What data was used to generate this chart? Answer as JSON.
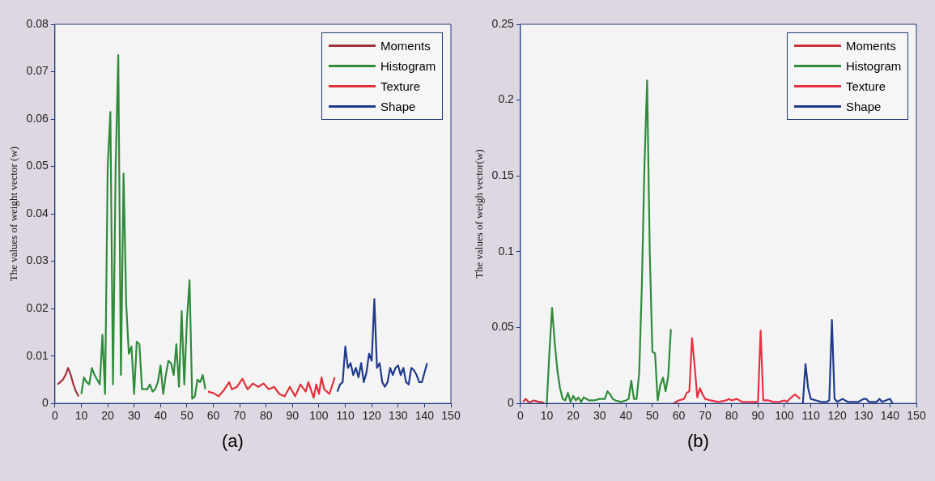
{
  "chart_data": [
    {
      "type": "line",
      "ylabel": "The values of weight vector (w)",
      "annotations": [
        "(a)"
      ],
      "xlim": [
        0,
        150
      ],
      "xticks": [
        0,
        10,
        20,
        30,
        40,
        50,
        60,
        70,
        80,
        90,
        100,
        110,
        120,
        130,
        140,
        150
      ],
      "ylim": [
        0,
        0.08
      ],
      "yticks": [
        0,
        0.01,
        0.02,
        0.03,
        0.04,
        0.05,
        0.06,
        0.07,
        0.08
      ],
      "legend": "top right",
      "marker": "none",
      "line_style": "solid",
      "series": [
        {
          "name": "Moments",
          "color": "#a0323c",
          "x": [
            1,
            2,
            3,
            4,
            5,
            6,
            7,
            8,
            9
          ],
          "values": [
            0.004,
            0.0045,
            0.005,
            0.006,
            0.0075,
            0.006,
            0.004,
            0.0025,
            0.0015
          ]
        },
        {
          "name": "Histogram",
          "color": "#2e8b3a",
          "x": [
            10,
            11,
            12,
            13,
            14,
            15,
            16,
            17,
            18,
            19,
            20,
            21,
            22,
            23,
            24,
            25,
            26,
            27,
            28,
            29,
            30,
            31,
            32,
            33,
            34,
            35,
            36,
            37,
            38,
            39,
            40,
            41,
            42,
            43,
            44,
            45,
            46,
            47,
            48,
            49,
            50,
            51,
            52,
            53,
            54,
            55,
            56,
            57
          ],
          "values": [
            0.002,
            0.0055,
            0.0045,
            0.004,
            0.0075,
            0.006,
            0.005,
            0.004,
            0.0145,
            0.002,
            0.05,
            0.0615,
            0.004,
            0.05,
            0.0735,
            0.006,
            0.0485,
            0.021,
            0.0105,
            0.012,
            0.002,
            0.013,
            0.0125,
            0.003,
            0.003,
            0.003,
            0.004,
            0.0025,
            0.003,
            0.0045,
            0.008,
            0.002,
            0.006,
            0.009,
            0.0085,
            0.006,
            0.0125,
            0.0035,
            0.0195,
            0.004,
            0.0175,
            0.026,
            0.001,
            0.0015,
            0.005,
            0.0045,
            0.006,
            0.003
          ]
        },
        {
          "name": "Texture",
          "color": "#e0303a",
          "x": [
            58,
            60,
            62,
            64,
            66,
            67,
            69,
            71,
            73,
            75,
            77,
            79,
            81,
            83,
            85,
            87,
            89,
            91,
            93,
            95,
            96,
            98,
            99,
            100,
            101,
            102,
            104,
            106
          ],
          "values": [
            0.0025,
            0.0022,
            0.0015,
            0.0028,
            0.0045,
            0.003,
            0.0035,
            0.0052,
            0.003,
            0.0042,
            0.0035,
            0.0042,
            0.003,
            0.0035,
            0.002,
            0.0015,
            0.0035,
            0.0015,
            0.004,
            0.0025,
            0.0045,
            0.0012,
            0.004,
            0.002,
            0.0055,
            0.003,
            0.002,
            0.0055
          ]
        },
        {
          "name": "Shape",
          "color": "#1f3a8c",
          "x": [
            107,
            108,
            109,
            110,
            111,
            112,
            113,
            114,
            115,
            116,
            117,
            118,
            119,
            120,
            121,
            122,
            123,
            124,
            125,
            126,
            127,
            128,
            129,
            130,
            131,
            132,
            133,
            134,
            135,
            136,
            137,
            138,
            139,
            141
          ],
          "values": [
            0.0025,
            0.004,
            0.0045,
            0.012,
            0.0075,
            0.0085,
            0.006,
            0.0075,
            0.0055,
            0.0085,
            0.0045,
            0.0065,
            0.0105,
            0.009,
            0.022,
            0.0075,
            0.0085,
            0.0045,
            0.0035,
            0.0045,
            0.0075,
            0.006,
            0.0075,
            0.008,
            0.006,
            0.0075,
            0.0045,
            0.004,
            0.0075,
            0.007,
            0.006,
            0.0045,
            0.0045,
            0.0085
          ]
        }
      ]
    },
    {
      "type": "line",
      "ylabel": "The values of weigh vector(w)",
      "annotations": [
        "(b)"
      ],
      "xlim": [
        0,
        150
      ],
      "xticks": [
        0,
        10,
        20,
        30,
        40,
        50,
        60,
        70,
        80,
        90,
        100,
        110,
        120,
        130,
        140,
        150
      ],
      "ylim": [
        0,
        0.25
      ],
      "yticks": [
        0,
        0.05,
        0.1,
        0.15,
        0.2,
        0.25
      ],
      "legend": "top right",
      "marker": "none",
      "line_style": "solid",
      "series": [
        {
          "name": "Moments",
          "color": "#c8303c",
          "x": [
            1,
            2,
            3,
            4,
            5,
            6,
            7,
            8,
            9
          ],
          "values": [
            0.001,
            0.003,
            0.001,
            0.001,
            0.002,
            0.0015,
            0.001,
            0.001,
            0
          ]
        },
        {
          "name": "Histogram",
          "color": "#2e8b3a",
          "x": [
            10,
            11,
            12,
            13,
            14,
            15,
            16,
            17,
            18,
            19,
            20,
            21,
            22,
            23,
            24,
            26,
            28,
            30,
            32,
            33,
            34,
            35,
            36,
            38,
            40,
            41,
            42,
            43,
            44,
            45,
            46,
            47,
            48,
            49,
            50,
            51,
            52,
            53,
            54,
            55,
            56,
            57
          ],
          "values": [
            0,
            0.034,
            0.063,
            0.04,
            0.022,
            0.01,
            0.003,
            0.002,
            0.007,
            0.001,
            0.005,
            0.002,
            0.004,
            0.001,
            0.004,
            0.002,
            0.002,
            0.003,
            0.003,
            0.008,
            0.006,
            0.003,
            0.002,
            0.001,
            0.002,
            0.003,
            0.015,
            0.003,
            0.003,
            0.02,
            0.077,
            0.157,
            0.213,
            0.1,
            0.034,
            0.033,
            0.002,
            0.012,
            0.017,
            0.008,
            0.018,
            0.049
          ]
        },
        {
          "name": "Texture",
          "color": "#e83040",
          "x": [
            58,
            60,
            62,
            63,
            64,
            65,
            66,
            67,
            68,
            69,
            70,
            72,
            75,
            78,
            79,
            80,
            82,
            84,
            88,
            90,
            91,
            92,
            94,
            96,
            98,
            100,
            101,
            102,
            104,
            106
          ],
          "values": [
            0,
            0.002,
            0.003,
            0.007,
            0.008,
            0.043,
            0.025,
            0.004,
            0.01,
            0.006,
            0.003,
            0.002,
            0.001,
            0.002,
            0.003,
            0.002,
            0.003,
            0.001,
            0.001,
            0.001,
            0.048,
            0.002,
            0.002,
            0.001,
            0.001,
            0.002,
            0.001,
            0.003,
            0.006,
            0.003
          ]
        },
        {
          "name": "Shape",
          "color": "#1f3a8c",
          "x": [
            107,
            108,
            109,
            110,
            112,
            114,
            116,
            117,
            118,
            119,
            120,
            122,
            124,
            128,
            130,
            131,
            132,
            135,
            136,
            137,
            140,
            141
          ],
          "values": [
            0,
            0.026,
            0.01,
            0.003,
            0.002,
            0.001,
            0.001,
            0.002,
            0.055,
            0.003,
            0.001,
            0.003,
            0.001,
            0.001,
            0.003,
            0.003,
            0.001,
            0.001,
            0.003,
            0.001,
            0.003,
            0
          ]
        }
      ]
    }
  ]
}
